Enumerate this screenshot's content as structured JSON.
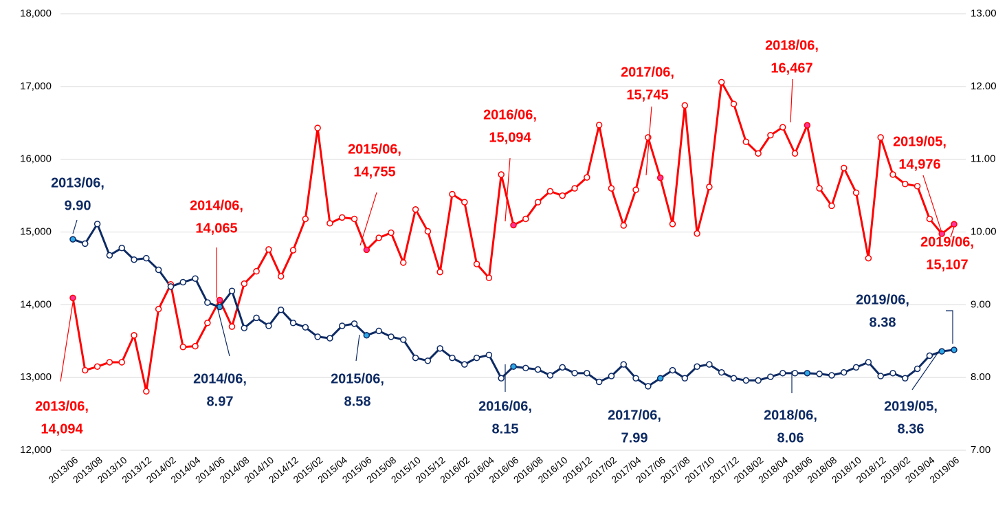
{
  "chart_data": {
    "type": "line",
    "categories": [
      "2013/06",
      null,
      "2013/08",
      null,
      "2013/10",
      null,
      "2013/12",
      null,
      "2014/02",
      null,
      "2014/04",
      null,
      "2014/06",
      null,
      "2014/08",
      null,
      "2014/10",
      null,
      "2014/12",
      null,
      "2015/02",
      null,
      "2015/04",
      null,
      "2015/06",
      null,
      "2015/08",
      null,
      "2015/10",
      null,
      "2015/12",
      null,
      "2016/02",
      null,
      "2016/04",
      null,
      "2016/06",
      null,
      "2016/08",
      null,
      "2016/10",
      null,
      "2016/12",
      null,
      "2017/02",
      null,
      "2017/04",
      null,
      "2017/06",
      null,
      "2017/08",
      null,
      "2017/10",
      null,
      "2017/12",
      null,
      "2018/02",
      null,
      "2018/04",
      null,
      "2018/06",
      null,
      "2018/08",
      null,
      "2018/10",
      null,
      "2018/12",
      null,
      "2019/02",
      null,
      "2019/04",
      null,
      "2019/06"
    ],
    "series": [
      {
        "color": "#ff0000",
        "highlight_color": "#ff3399",
        "values": [
          14094,
          13100,
          13150,
          13210,
          13210,
          13580,
          12810,
          13940,
          14280,
          13420,
          13430,
          13750,
          14065,
          13700,
          14290,
          14460,
          14760,
          14390,
          14750,
          15180,
          16430,
          15120,
          15200,
          15180,
          14755,
          14920,
          14990,
          14580,
          15310,
          15010,
          14450,
          15520,
          15410,
          14560,
          14370,
          15790,
          15094,
          15180,
          15410,
          15560,
          15500,
          15600,
          15750,
          16470,
          15600,
          15090,
          15580,
          16300,
          15745,
          15110,
          16740,
          14980,
          15620,
          17060,
          16760,
          16240,
          16080,
          16330,
          16440,
          16080,
          16467,
          15600,
          15360,
          15880,
          15540,
          14640,
          16300,
          15790,
          15660,
          15630,
          15180,
          14976,
          15107
        ],
        "point_labels": [
          "2013/06,",
          null,
          null,
          null,
          null,
          null,
          null,
          null,
          null,
          null,
          null,
          null,
          "2014/06,",
          null,
          null,
          null,
          null,
          null,
          null,
          null,
          null,
          null,
          null,
          null,
          "2015/06,",
          null,
          null,
          null,
          null,
          null,
          null,
          null,
          null,
          null,
          null,
          null,
          "2016/06,",
          null,
          null,
          null,
          null,
          null,
          null,
          null,
          null,
          null,
          null,
          null,
          "2017/06,",
          null,
          null,
          null,
          null,
          null,
          null,
          null,
          null,
          null,
          null,
          null,
          "2018/06,",
          null,
          null,
          null,
          null,
          null,
          null,
          null,
          null,
          null,
          null,
          "2019/05,",
          "2019/06,"
        ],
        "value_labels": [
          "14,094",
          null,
          null,
          null,
          null,
          null,
          null,
          null,
          null,
          null,
          null,
          null,
          "14,065",
          null,
          null,
          null,
          null,
          null,
          null,
          null,
          null,
          null,
          null,
          null,
          "14,755",
          null,
          null,
          null,
          null,
          null,
          null,
          null,
          null,
          null,
          null,
          null,
          "15,094",
          null,
          null,
          null,
          null,
          null,
          null,
          null,
          null,
          null,
          null,
          null,
          "15,745",
          null,
          null,
          null,
          null,
          null,
          null,
          null,
          null,
          null,
          null,
          null,
          "16,467",
          null,
          null,
          null,
          null,
          null,
          null,
          null,
          null,
          null,
          null,
          "14,976",
          "15,107"
        ]
      },
      {
        "color": "#0d2a63",
        "highlight_color": "#2fa8e8",
        "axis": "y2",
        "values": [
          9.9,
          9.84,
          10.11,
          9.68,
          9.78,
          9.62,
          9.64,
          9.48,
          9.25,
          9.31,
          9.36,
          9.03,
          8.97,
          9.19,
          8.68,
          8.82,
          8.71,
          8.93,
          8.75,
          8.69,
          8.56,
          8.54,
          8.71,
          8.74,
          8.58,
          8.64,
          8.56,
          8.52,
          8.27,
          8.23,
          8.4,
          8.27,
          8.18,
          8.27,
          8.31,
          7.99,
          8.15,
          8.13,
          8.11,
          8.03,
          8.14,
          8.06,
          8.06,
          7.94,
          8.02,
          8.18,
          7.99,
          7.88,
          7.99,
          8.1,
          7.99,
          8.15,
          8.18,
          8.07,
          7.99,
          7.96,
          7.96,
          8.01,
          8.06,
          8.06,
          8.06,
          8.05,
          8.03,
          8.07,
          8.14,
          8.21,
          8.02,
          8.06,
          7.99,
          8.12,
          8.3,
          8.36,
          8.38
        ],
        "point_labels": [
          "2013/06,",
          null,
          null,
          null,
          null,
          null,
          null,
          null,
          null,
          null,
          null,
          null,
          "2014/06,",
          null,
          null,
          null,
          null,
          null,
          null,
          null,
          null,
          null,
          null,
          null,
          "2015/06,",
          null,
          null,
          null,
          null,
          null,
          null,
          null,
          null,
          null,
          null,
          null,
          "2016/06,",
          null,
          null,
          null,
          null,
          null,
          null,
          null,
          null,
          null,
          null,
          null,
          "2017/06,",
          null,
          null,
          null,
          null,
          null,
          null,
          null,
          null,
          null,
          null,
          null,
          "2018/06,",
          null,
          null,
          null,
          null,
          null,
          null,
          null,
          null,
          null,
          null,
          "2019/05,",
          "2019/06,"
        ],
        "value_labels": [
          "9.90",
          null,
          null,
          null,
          null,
          null,
          null,
          null,
          null,
          null,
          null,
          null,
          "8.97",
          null,
          null,
          null,
          null,
          null,
          null,
          null,
          null,
          null,
          null,
          null,
          "8.58",
          null,
          null,
          null,
          null,
          null,
          null,
          null,
          null,
          null,
          null,
          null,
          "8.15",
          null,
          null,
          null,
          null,
          null,
          null,
          null,
          null,
          null,
          null,
          null,
          "7.99",
          null,
          null,
          null,
          null,
          null,
          null,
          null,
          null,
          null,
          null,
          null,
          "8.06",
          null,
          null,
          null,
          null,
          null,
          null,
          null,
          null,
          null,
          null,
          "8.36",
          "8.38"
        ]
      }
    ],
    "ylim": [
      12000,
      18000
    ],
    "yticks": [
      {
        "value": 12000,
        "label": "12,000"
      },
      {
        "value": 13000,
        "label": "13,000"
      },
      {
        "value": 14000,
        "label": "14,000"
      },
      {
        "value": 15000,
        "label": "15,000"
      },
      {
        "value": 16000,
        "label": "16,000"
      },
      {
        "value": 17000,
        "label": "17,000"
      },
      {
        "value": 18000,
        "label": "18,000"
      }
    ],
    "y2lim": [
      7,
      13
    ],
    "y2ticks": [
      {
        "value": 7,
        "label": "7.00"
      },
      {
        "value": 8,
        "label": "8.00"
      },
      {
        "value": 9,
        "label": "9.00"
      },
      {
        "value": 10,
        "label": "10.00"
      },
      {
        "value": 11,
        "label": "11.00"
      },
      {
        "value": 12,
        "label": "12.00"
      },
      {
        "value": 13,
        "label": "13.00"
      }
    ],
    "grid": true
  }
}
